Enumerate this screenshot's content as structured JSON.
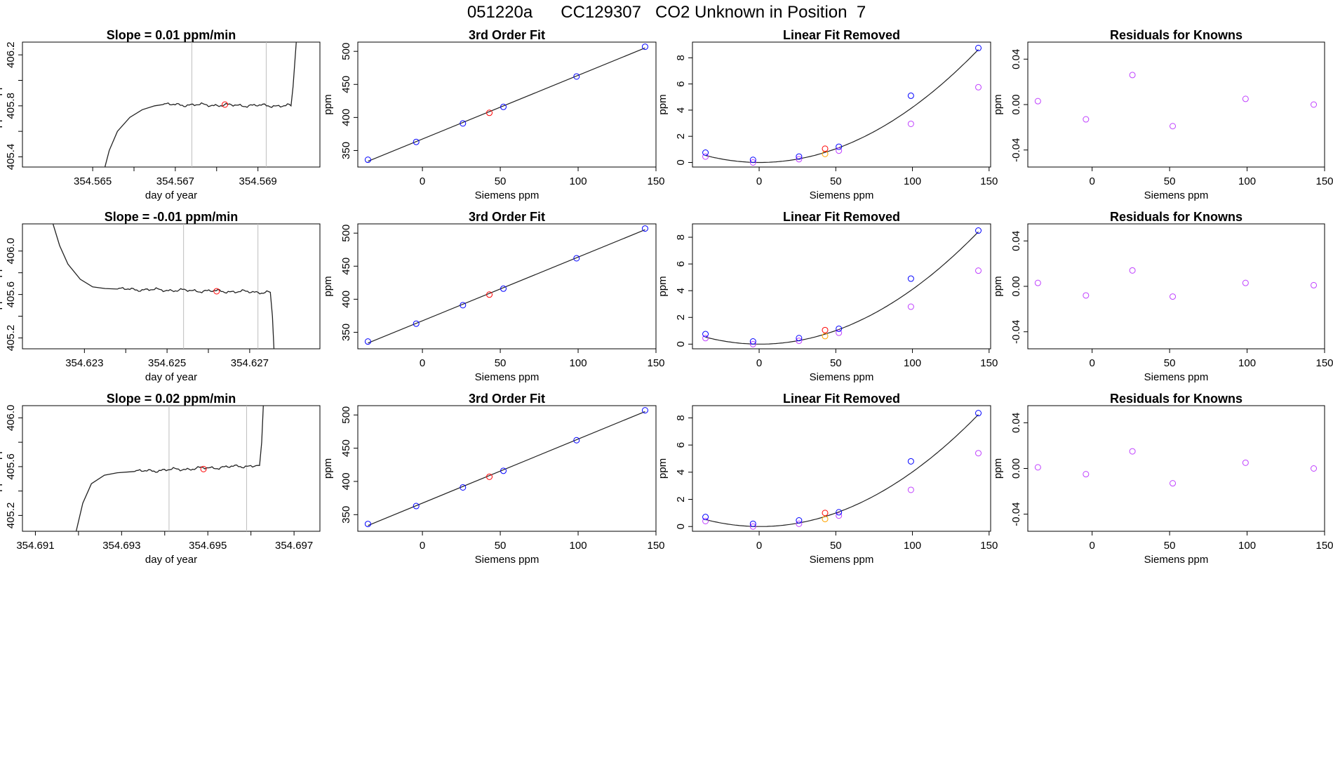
{
  "page_title": "051220a      CC129307   CO2 Unknown in Position  7",
  "colors": {
    "known": "#0000ff",
    "unknown": "#ff0000",
    "residual": "#bf3fff",
    "orange": "#ffa500",
    "line": "#222222",
    "vline": "#bebebe"
  },
  "chart_data": [
    {
      "type": "line",
      "title": "Slope =  0.01  ppm/min",
      "xlabel": "day of year",
      "ylabel": "approx. ppm",
      "xlim": [
        354.5633,
        354.5705
      ],
      "ylim": [
        405.32,
        406.3
      ],
      "xticks": [
        354.565,
        354.566,
        354.567,
        354.568,
        354.569
      ],
      "xtick_labels": [
        "354.565",
        "",
        "354.567",
        "",
        "354.569"
      ],
      "yticks": [
        405.4,
        405.6,
        405.8,
        406.0,
        406.2
      ],
      "ytick_labels": [
        "405.4",
        "",
        "405.8",
        "",
        "406.2"
      ],
      "vlines": [
        354.5674,
        354.5692
      ],
      "plateau": 405.81,
      "trace": [
        [
          354.5652,
          405.2
        ],
        [
          354.5654,
          405.45
        ],
        [
          354.5656,
          405.6
        ],
        [
          354.5659,
          405.71
        ],
        [
          354.5662,
          405.77
        ],
        [
          354.5665,
          405.8
        ],
        [
          354.5667,
          405.81
        ],
        [
          354.5698,
          405.8
        ],
        [
          354.56985,
          405.95
        ],
        [
          354.56995,
          406.4
        ]
      ],
      "red_point": [
        354.5682,
        405.81
      ]
    },
    {
      "type": "line",
      "title": "Slope =  -0.01  ppm/min",
      "xlabel": "day of year",
      "ylabel": "approx. ppm",
      "xlim": [
        354.6215,
        354.6287
      ],
      "ylim": [
        405.1,
        406.25
      ],
      "xticks": [
        354.623,
        354.624,
        354.625,
        354.626,
        354.627
      ],
      "xtick_labels": [
        "354.623",
        "",
        "354.625",
        "",
        "354.627"
      ],
      "yticks": [
        405.2,
        405.4,
        405.6,
        405.8,
        406.0
      ],
      "ytick_labels": [
        "405.2",
        "",
        "405.6",
        "",
        "406.0"
      ],
      "vlines": [
        354.6254,
        354.6272
      ],
      "plateau": 405.63,
      "trace": [
        [
          354.6222,
          406.3
        ],
        [
          354.6224,
          406.05
        ],
        [
          354.6226,
          405.88
        ],
        [
          354.6229,
          405.74
        ],
        [
          354.6232,
          405.67
        ],
        [
          354.6235,
          405.655
        ],
        [
          354.6238,
          405.65
        ],
        [
          354.6275,
          405.62
        ],
        [
          354.62755,
          405.4
        ],
        [
          354.6276,
          405.0
        ]
      ],
      "red_point": [
        354.6262,
        405.63
      ]
    },
    {
      "type": "line",
      "title": "Slope =  0.02  ppm/min",
      "xlabel": "day of year",
      "ylabel": "approx. ppm",
      "xlim": [
        354.6907,
        354.6976
      ],
      "ylim": [
        405.07,
        406.1
      ],
      "xticks": [
        354.691,
        354.692,
        354.693,
        354.694,
        354.695,
        354.696,
        354.697
      ],
      "xtick_labels": [
        "354.691",
        "",
        "354.693",
        "",
        "354.695",
        "",
        "354.697"
      ],
      "yticks": [
        405.2,
        405.4,
        405.6,
        405.8,
        406.0
      ],
      "ytick_labels": [
        "405.2",
        "",
        "405.6",
        "",
        "406.0"
      ],
      "vlines": [
        354.6941,
        354.6959
      ],
      "plateau": 405.58,
      "trace": [
        [
          354.6919,
          405.0
        ],
        [
          354.6921,
          405.3
        ],
        [
          354.6923,
          405.46
        ],
        [
          354.6926,
          405.53
        ],
        [
          354.6929,
          405.55
        ],
        [
          354.6933,
          405.56
        ],
        [
          354.6962,
          405.61
        ],
        [
          354.69625,
          405.8
        ],
        [
          354.6963,
          406.2
        ]
      ],
      "red_point": [
        354.6949,
        405.58
      ]
    },
    {
      "type": "scatter",
      "title": "3rd Order Fit",
      "xlabel": "Siemens ppm",
      "ylabel": "ppm",
      "xlim": [
        -41.5,
        150
      ],
      "ylim": [
        325,
        514
      ],
      "xticks": [
        0,
        50,
        100,
        150
      ],
      "yticks": [
        350,
        400,
        450,
        500
      ],
      "known_x": [
        -35,
        -4,
        26,
        52,
        99,
        143
      ],
      "known_y": [
        336,
        363,
        391,
        416,
        462,
        507
      ],
      "unknown_x": [
        43
      ],
      "unknown_y": [
        407
      ]
    },
    {
      "type": "scatter",
      "title": "3rd Order Fit",
      "xlabel": "Siemens ppm",
      "ylabel": "ppm",
      "xlim": [
        -41.5,
        150
      ],
      "ylim": [
        325,
        514
      ],
      "xticks": [
        0,
        50,
        100,
        150
      ],
      "yticks": [
        350,
        400,
        450,
        500
      ],
      "known_x": [
        -35,
        -4,
        26,
        52,
        99,
        143
      ],
      "known_y": [
        336,
        363,
        391,
        416,
        462,
        507
      ],
      "unknown_x": [
        43
      ],
      "unknown_y": [
        407
      ]
    },
    {
      "type": "scatter",
      "title": "3rd Order Fit",
      "xlabel": "Siemens ppm",
      "ylabel": "ppm",
      "xlim": [
        -41.5,
        150
      ],
      "ylim": [
        325,
        514
      ],
      "xticks": [
        0,
        50,
        100,
        150
      ],
      "yticks": [
        350,
        400,
        450,
        500
      ],
      "known_x": [
        -35,
        -4,
        26,
        52,
        99,
        143
      ],
      "known_y": [
        336,
        363,
        391,
        416,
        462,
        507
      ],
      "unknown_x": [
        43
      ],
      "unknown_y": [
        407
      ]
    },
    {
      "type": "scatter",
      "title": "Linear Fit Removed",
      "xlabel": "Siemens ppm",
      "ylabel": "ppm",
      "xlim": [
        -43.5,
        151
      ],
      "ylim": [
        -0.35,
        9.2
      ],
      "xticks": [
        0,
        50,
        100,
        150
      ],
      "yticks": [
        0,
        2,
        4,
        6,
        8
      ],
      "curve": {
        "a": 0.000425,
        "b": -0.0004,
        "c": 0.0
      },
      "known_x": [
        -35,
        -4,
        26,
        52,
        99,
        143
      ],
      "known_y": [
        0.75,
        0.2,
        0.45,
        1.2,
        5.1,
        8.75
      ],
      "purple_x": [
        -35,
        -4,
        26,
        52,
        99,
        143
      ],
      "purple_y": [
        0.45,
        0.0,
        0.25,
        0.9,
        2.95,
        5.75
      ],
      "unknown_x": [
        43
      ],
      "unknown_y": [
        1.05
      ],
      "orange_x": [
        43
      ],
      "orange_y": [
        0.65
      ]
    },
    {
      "type": "scatter",
      "title": "Linear Fit Removed",
      "xlabel": "Siemens ppm",
      "ylabel": "ppm",
      "xlim": [
        -43.5,
        151
      ],
      "ylim": [
        -0.35,
        9.0
      ],
      "xticks": [
        0,
        50,
        100,
        150
      ],
      "yticks": [
        0,
        2,
        4,
        6,
        8
      ],
      "curve": {
        "a": 0.000414,
        "b": -0.0004,
        "c": 0.0
      },
      "known_x": [
        -35,
        -4,
        26,
        52,
        99,
        143
      ],
      "known_y": [
        0.75,
        0.2,
        0.45,
        1.15,
        4.9,
        8.5
      ],
      "purple_x": [
        -35,
        -4,
        26,
        52,
        99,
        143
      ],
      "purple_y": [
        0.45,
        0.0,
        0.25,
        0.85,
        2.8,
        5.5
      ],
      "unknown_x": [
        43
      ],
      "unknown_y": [
        1.05
      ],
      "orange_x": [
        43
      ],
      "orange_y": [
        0.6
      ]
    },
    {
      "type": "scatter",
      "title": "Linear Fit Removed",
      "xlabel": "Siemens ppm",
      "ylabel": "ppm",
      "xlim": [
        -43.5,
        151
      ],
      "ylim": [
        -0.35,
        8.9
      ],
      "xticks": [
        0,
        50,
        100,
        150
      ],
      "yticks": [
        0,
        2,
        4,
        6,
        8
      ],
      "curve": {
        "a": 0.000406,
        "b": -0.0004,
        "c": 0.0
      },
      "known_x": [
        -35,
        -4,
        26,
        52,
        99,
        143
      ],
      "known_y": [
        0.7,
        0.2,
        0.45,
        1.05,
        4.8,
        8.35
      ],
      "purple_x": [
        -35,
        -4,
        26,
        52,
        99,
        143
      ],
      "purple_y": [
        0.4,
        0.0,
        0.2,
        0.8,
        2.7,
        5.4
      ],
      "unknown_x": [
        43
      ],
      "unknown_y": [
        1.0
      ],
      "orange_x": [
        43
      ],
      "orange_y": [
        0.55
      ]
    },
    {
      "type": "scatter",
      "title": "Residuals for Knowns",
      "xlabel": "Siemens ppm",
      "ylabel": "ppm",
      "xlim": [
        -41.5,
        150
      ],
      "ylim": [
        -0.055,
        0.055
      ],
      "xticks": [
        0,
        50,
        100,
        150
      ],
      "yticks": [
        -0.04,
        0.0,
        0.04
      ],
      "ytick_labels": [
        "-0.04",
        "0.00",
        "0.04"
      ],
      "purple_x": [
        -35,
        -4,
        26,
        52,
        99,
        143
      ],
      "purple_y": [
        0.003,
        -0.013,
        0.026,
        -0.019,
        0.005,
        0.0
      ]
    },
    {
      "type": "scatter",
      "title": "Residuals for Knowns",
      "xlabel": "Siemens ppm",
      "ylabel": "ppm",
      "xlim": [
        -41.5,
        150
      ],
      "ylim": [
        -0.055,
        0.055
      ],
      "xticks": [
        0,
        50,
        100,
        150
      ],
      "yticks": [
        -0.04,
        0.0,
        0.04
      ],
      "ytick_labels": [
        "-0.04",
        "0.00",
        "0.04"
      ],
      "purple_x": [
        -35,
        -4,
        26,
        52,
        99,
        143
      ],
      "purple_y": [
        0.003,
        -0.008,
        0.014,
        -0.009,
        0.003,
        0.001
      ]
    },
    {
      "type": "scatter",
      "title": "Residuals for Knowns",
      "xlabel": "Siemens ppm",
      "ylabel": "ppm",
      "xlim": [
        -41.5,
        150
      ],
      "ylim": [
        -0.055,
        0.055
      ],
      "xticks": [
        0,
        50,
        100,
        150
      ],
      "yticks": [
        -0.04,
        0.0,
        0.04
      ],
      "ytick_labels": [
        "-0.04",
        "0.00",
        "0.04"
      ],
      "purple_x": [
        -35,
        -4,
        26,
        52,
        99,
        143
      ],
      "purple_y": [
        0.001,
        -0.005,
        0.015,
        -0.013,
        0.005,
        0.0
      ]
    }
  ]
}
